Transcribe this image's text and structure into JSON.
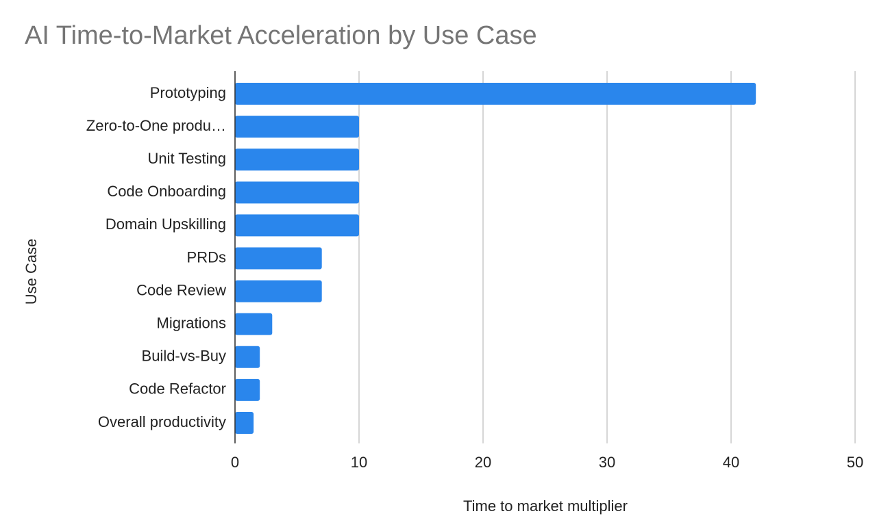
{
  "chart_data": {
    "type": "bar",
    "orientation": "horizontal",
    "title": "AI Time-to-Market Acceleration by Use Case",
    "x_label": "Time to market multiplier",
    "y_label": "Use Case",
    "categories": [
      "Prototyping",
      "Zero-to-One produ…",
      "Unit Testing",
      "Code Onboarding",
      "Domain Upskilling",
      "PRDs",
      "Code Review",
      "Migrations",
      "Build-vs-Buy",
      "Code Refactor",
      "Overall productivity"
    ],
    "values": [
      42,
      10,
      10,
      10,
      10,
      7,
      7,
      3,
      2,
      2,
      1.5
    ],
    "color": "#2a86ec",
    "xlim": [
      0,
      50
    ],
    "xticks": [
      0,
      10,
      20,
      30,
      40,
      50
    ],
    "grid": true
  }
}
